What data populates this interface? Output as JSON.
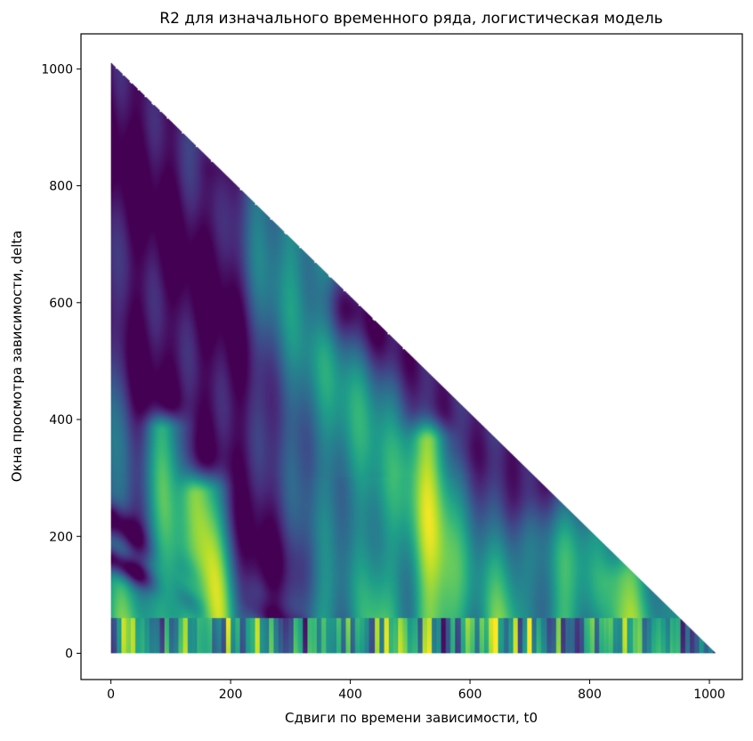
{
  "chart_data": {
    "type": "scatter",
    "title": "R2 для изначального временного ряда, логистическая модель",
    "xlabel": "Сдвиги по времени зависимости, t0",
    "ylabel": "Окна просмотра зависимости, delta",
    "xlim": [
      -50,
      1055
    ],
    "ylim": [
      -45,
      1060
    ],
    "xticks": [
      0,
      200,
      400,
      600,
      800,
      1000
    ],
    "yticks": [
      0,
      200,
      400,
      600,
      800,
      1000
    ],
    "grid": false,
    "colormap": "viridis",
    "domain_note_hidden": true,
    "series": [
      {
        "x_range": [
          0,
          1005
        ],
        "y_range": [
          0,
          1010
        ],
        "constraint": "x + y <= 1010"
      }
    ],
    "features": [
      {
        "x0": 0,
        "y0": 1010,
        "x1": 100,
        "y1": 230,
        "w": 55,
        "v": 0.0
      },
      {
        "x0": 40,
        "y0": 1000,
        "x1": 240,
        "y1": 170,
        "w": 85,
        "v": 0.0
      },
      {
        "x0": 0,
        "y0": 230,
        "x1": 300,
        "y1": 40,
        "w": 18,
        "v": 0.0
      },
      {
        "x0": 0,
        "y0": 160,
        "x1": 150,
        "y1": 80,
        "w": 14,
        "v": 0.0
      },
      {
        "x0": 600,
        "y0": 410,
        "x1": 700,
        "y1": 290,
        "w": 60,
        "v": 0.0
      },
      {
        "x0": 420,
        "y0": 590,
        "x1": 620,
        "y1": 400,
        "w": 45,
        "v": 0.05
      },
      {
        "x0": 180,
        "y0": 820,
        "x1": 200,
        "y1": 0,
        "w": 26,
        "v": 0.0
      },
      {
        "x0": 150,
        "y0": 270,
        "x1": 180,
        "y1": 0,
        "w": 28,
        "v": 0.88
      },
      {
        "x0": 530,
        "y0": 360,
        "x1": 545,
        "y1": 0,
        "w": 25,
        "v": 0.85
      },
      {
        "x0": 90,
        "y0": 380,
        "x1": 100,
        "y1": 0,
        "w": 22,
        "v": 0.7
      },
      {
        "x0": 860,
        "y0": 120,
        "x1": 880,
        "y1": 0,
        "w": 25,
        "v": 0.75
      }
    ]
  }
}
